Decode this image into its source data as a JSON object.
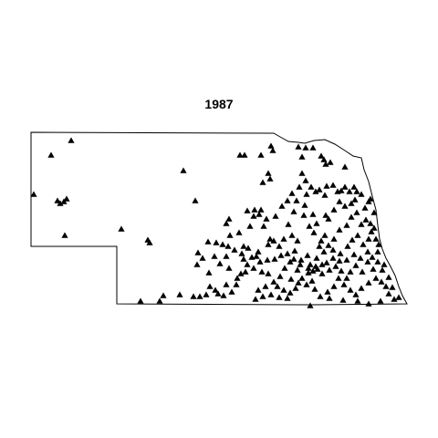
{
  "title": "1987",
  "map": {
    "region_shape": "state-outline",
    "marker": "filled-triangle",
    "marker_color": "#000000",
    "outline_color": "#000000",
    "background_color": "#ffffff",
    "point_count": 250
  }
}
